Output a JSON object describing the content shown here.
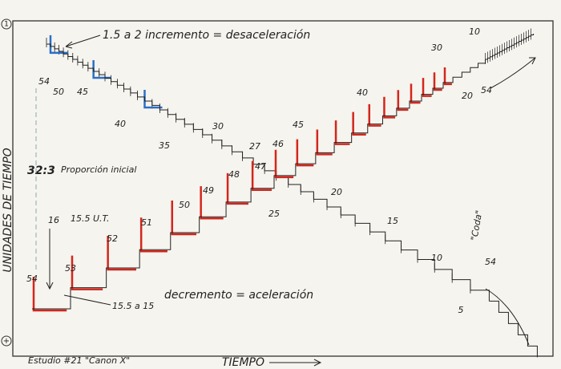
{
  "title": "Estudio #21 \"Canon X\"",
  "axis_labels": {
    "y": "UNIDADES DE TIEMPO",
    "x": "TIEMPO"
  },
  "corner_marks": [
    "1",
    "+"
  ],
  "annotations": {
    "top": "1.5 a 2 incremento = desaceleración",
    "ratio": "32:3",
    "ratio_note": "Proporción inicial",
    "bottom": "decremento = aceleración",
    "bottom_range": "15.5 a 15",
    "start": "16",
    "start_unit": "15.5 U.T.",
    "coda": "\"Coda\""
  },
  "descending_voice": {
    "labels": [
      "54",
      "50",
      "45",
      "40",
      "35",
      "30",
      "27",
      "25",
      "20",
      "15",
      "10",
      "5",
      "54"
    ]
  },
  "ascending_voice": {
    "labels": [
      "54",
      "53",
      "52",
      "51",
      "50",
      "49",
      "48",
      "47",
      "46",
      "45",
      "40",
      "30",
      "20",
      "10",
      "54"
    ]
  }
}
